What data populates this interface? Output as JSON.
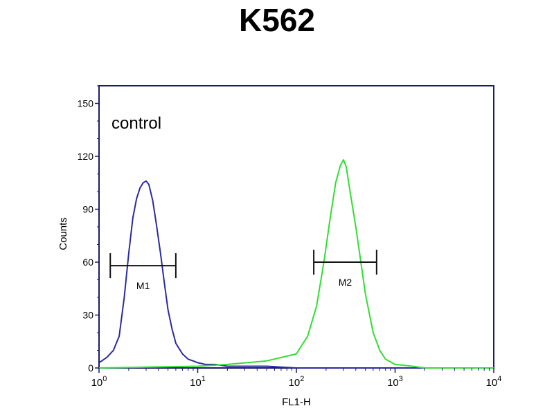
{
  "chart_data": {
    "type": "line",
    "title": "K562",
    "xlabel": "FL1-H",
    "ylabel": "Counts",
    "x_scale": "log",
    "xlim": [
      1,
      10000
    ],
    "ylim": [
      0,
      160
    ],
    "x_ticks": [
      {
        "value": 1,
        "base": "10",
        "exp": "0"
      },
      {
        "value": 10,
        "base": "10",
        "exp": "1"
      },
      {
        "value": 100,
        "base": "10",
        "exp": "2"
      },
      {
        "value": 1000,
        "base": "10",
        "exp": "3"
      },
      {
        "value": 10000,
        "base": "10",
        "exp": "4"
      }
    ],
    "y_ticks": [
      0,
      30,
      60,
      90,
      120,
      150
    ],
    "grid": false,
    "annotation": "control",
    "series": [
      {
        "color": "#2a2aa0",
        "x": [
          1,
          1.2,
          1.4,
          1.6,
          1.8,
          2.0,
          2.2,
          2.4,
          2.6,
          2.8,
          3.0,
          3.2,
          3.5,
          3.8,
          4.2,
          4.6,
          5.0,
          5.5,
          6.0,
          7.0,
          8.0,
          9.0,
          10,
          12,
          15,
          20,
          30,
          50,
          100,
          1000,
          10000
        ],
        "y": [
          3,
          6,
          10,
          18,
          40,
          65,
          85,
          96,
          102,
          105,
          106,
          104,
          95,
          82,
          65,
          48,
          33,
          22,
          14,
          8,
          5,
          4,
          3,
          2,
          2,
          1,
          1,
          1,
          0,
          0,
          0
        ]
      },
      {
        "color": "#33dd33",
        "x": [
          1,
          10,
          20,
          50,
          100,
          130,
          160,
          190,
          220,
          250,
          280,
          300,
          320,
          350,
          400,
          450,
          500,
          600,
          700,
          800,
          1000,
          1500,
          2000,
          10000
        ],
        "y": [
          0,
          1,
          2,
          4,
          8,
          18,
          35,
          60,
          85,
          105,
          115,
          118,
          114,
          100,
          80,
          60,
          42,
          20,
          10,
          5,
          2,
          1,
          0,
          0
        ]
      }
    ],
    "markers": [
      {
        "label": "M1",
        "x_start": 1.3,
        "x_end": 6.0,
        "y": 58
      },
      {
        "label": "M2",
        "x_start": 150,
        "x_end": 650,
        "y": 60
      }
    ]
  }
}
